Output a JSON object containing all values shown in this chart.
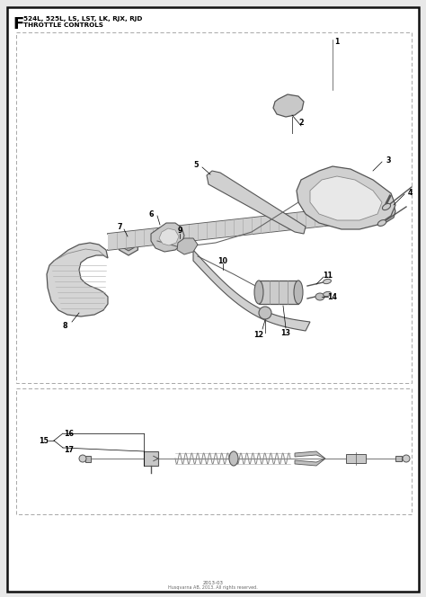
{
  "title_letter": "F",
  "title_line1": "524L, 525L, LS, LST, LK, RJX, RJD",
  "title_line2": "THROTTLE CONTROLS",
  "bg_color": "#e8e8e8",
  "panel_bg": "#ffffff",
  "border_color": "#111111",
  "dashed_box_color": "#999999",
  "footer_text": "2013-03",
  "footer_subtext": "Husqvarna AB, 2013. All rights reserved.",
  "line_color": "#444444",
  "part_color": "#cccccc",
  "part_edge": "#555555"
}
